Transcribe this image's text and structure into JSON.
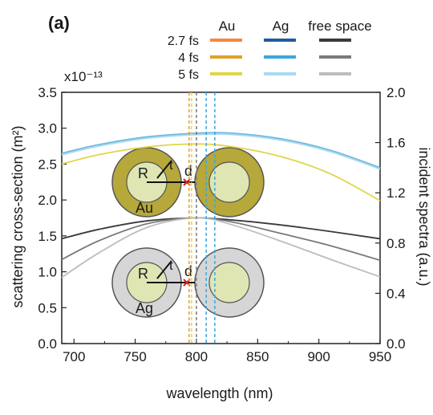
{
  "panel_label": "(a)",
  "legend": {
    "column_headers": [
      "Au",
      "Ag",
      "free space"
    ],
    "row_labels": [
      "2.7 fs",
      "4 fs",
      "5 fs"
    ],
    "colors": {
      "Au": [
        "#f28a3c",
        "#e0a12a",
        "#e2d44a"
      ],
      "Ag": [
        "#1f5d9e",
        "#3aa6de",
        "#a9d9f0"
      ],
      "free space": [
        "#3a3a3a",
        "#7a7a7a",
        "#bdbdbd"
      ]
    }
  },
  "inset": {
    "labels": {
      "R": "R",
      "t": "t",
      "d": "d",
      "au": "Au",
      "ag": "Ag"
    },
    "colors": {
      "au_shell": "#b6a83a",
      "ag_shell": "#d6d6d6",
      "core": "#dfe6b4",
      "gap": "#d62020"
    }
  },
  "chart_data": {
    "type": "line",
    "xlabel": "wavelength (nm)",
    "ylabel": "scattering cross-section (m²)",
    "y2label": "incident spectra (a.u.)",
    "y_exponent_label": "x10⁻¹³",
    "xlim": [
      690,
      950
    ],
    "ylim": [
      0,
      3.5
    ],
    "y2lim": [
      0,
      2.0
    ],
    "x_ticks": [
      700,
      750,
      800,
      850,
      900,
      950
    ],
    "y_ticks": [
      "0.0",
      "0.5",
      "1.0",
      "1.5",
      "2.0",
      "2.5",
      "3.0",
      "3.5"
    ],
    "y2_ticks": [
      "0.0",
      "0.4",
      "0.8",
      "1.2",
      "1.6",
      "2.0"
    ],
    "series": [
      {
        "color": "#6fb8e0",
        "x": [
          690,
          720,
          760,
          800,
          830,
          870,
          910,
          950
        ],
        "y": [
          2.65,
          2.77,
          2.88,
          2.93,
          2.93,
          2.85,
          2.69,
          2.45
        ]
      },
      {
        "color": "#a9d9f0",
        "x": [
          690,
          720,
          760,
          800,
          830,
          870,
          910,
          950
        ],
        "y": [
          2.63,
          2.75,
          2.86,
          2.91,
          2.91,
          2.83,
          2.67,
          2.43
        ]
      },
      {
        "color": "#e2d44a",
        "x": [
          690,
          720,
          760,
          800,
          830,
          870,
          910,
          950
        ],
        "y": [
          2.5,
          2.63,
          2.74,
          2.78,
          2.74,
          2.6,
          2.36,
          1.99
        ]
      },
      {
        "color": "#3a3a3a",
        "x": [
          690,
          720,
          760,
          800,
          830,
          870,
          910,
          950
        ],
        "y": [
          1.46,
          1.59,
          1.71,
          1.75,
          1.72,
          1.65,
          1.56,
          1.46
        ]
      },
      {
        "color": "#7a7a7a",
        "x": [
          690,
          720,
          760,
          800,
          830,
          870,
          910,
          950
        ],
        "y": [
          1.17,
          1.43,
          1.67,
          1.75,
          1.69,
          1.53,
          1.36,
          1.16
        ]
      },
      {
        "color": "#bdbdbd",
        "x": [
          690,
          720,
          760,
          800,
          830,
          870,
          910,
          950
        ],
        "y": [
          0.92,
          1.26,
          1.62,
          1.75,
          1.65,
          1.42,
          1.17,
          0.93
        ]
      }
    ],
    "vlines": [
      {
        "x": 794,
        "color": "#e0a12a"
      },
      {
        "x": 796,
        "color": "#e2d44a"
      },
      {
        "x": 800,
        "color": "#7a7a7a"
      },
      {
        "x": 808,
        "color": "#3aa6de"
      },
      {
        "x": 815,
        "color": "#3aa6de"
      }
    ]
  }
}
